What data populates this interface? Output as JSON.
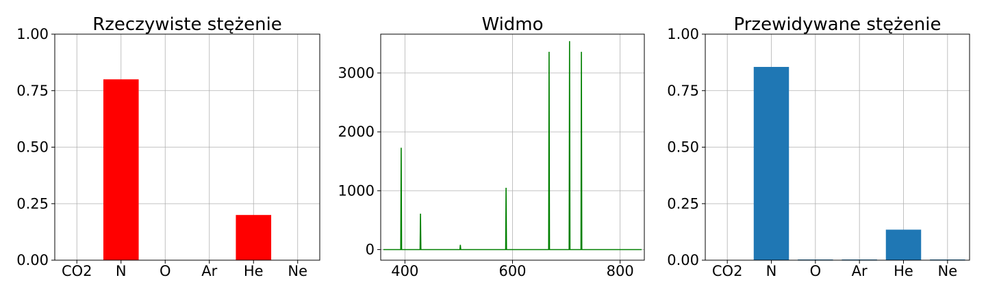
{
  "chart_data": [
    {
      "type": "bar",
      "title": "Rzeczywiste stężenie",
      "categories": [
        "CO2",
        "N",
        "O",
        "Ar",
        "He",
        "Ne"
      ],
      "values": [
        0.0,
        0.8,
        0.0,
        0.0,
        0.2,
        0.0
      ],
      "ylim": [
        0,
        1
      ],
      "yticks": [
        0.0,
        0.25,
        0.5,
        0.75,
        1.0
      ],
      "ytick_labels": [
        "0.00",
        "0.25",
        "0.50",
        "0.75",
        "1.00"
      ],
      "color": "#ff0000",
      "grid": true
    },
    {
      "type": "line",
      "title": "Widmo",
      "xlim": [
        355,
        845
      ],
      "ylim": [
        -180,
        3660
      ],
      "xticks": [
        400,
        600,
        800
      ],
      "xtick_labels": [
        "400",
        "600",
        "800"
      ],
      "yticks": [
        0,
        1000,
        2000,
        3000
      ],
      "ytick_labels": [
        "0",
        "1000",
        "2000",
        "3000"
      ],
      "color": "#008000",
      "grid": true,
      "x_range": [
        360,
        840
      ],
      "baseline": 0,
      "peaks": [
        {
          "x": 393,
          "y": 1730
        },
        {
          "x": 429,
          "y": 610
        },
        {
          "x": 503,
          "y": 80
        },
        {
          "x": 588,
          "y": 1050
        },
        {
          "x": 668,
          "y": 3360
        },
        {
          "x": 706,
          "y": 3540
        },
        {
          "x": 728,
          "y": 3360
        }
      ]
    },
    {
      "type": "bar",
      "title": "Przewidywane stężenie",
      "categories": [
        "CO2",
        "N",
        "O",
        "Ar",
        "He",
        "Ne"
      ],
      "values": [
        0.0,
        0.855,
        0.003,
        0.003,
        0.135,
        0.003
      ],
      "ylim": [
        0,
        1
      ],
      "yticks": [
        0.0,
        0.25,
        0.5,
        0.75,
        1.0
      ],
      "ytick_labels": [
        "0.00",
        "0.25",
        "0.50",
        "0.75",
        "1.00"
      ],
      "color": "#1f77b4",
      "grid": true
    }
  ]
}
